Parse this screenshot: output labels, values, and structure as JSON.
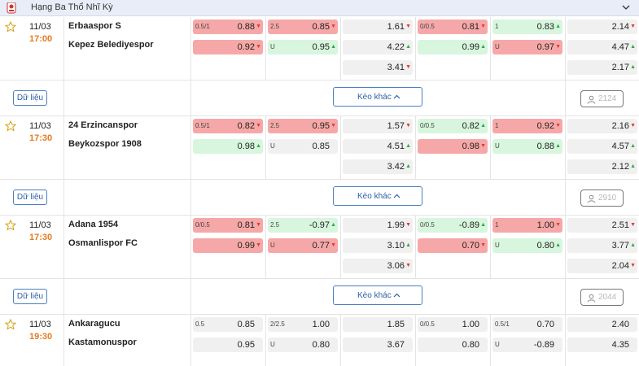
{
  "league": {
    "title": "Hạng Ba Thổ Nhĩ Kỳ"
  },
  "colors": {
    "red_cell": "#f6a8a8",
    "green_cell": "#d7f6dd",
    "neutral_cell": "#f0f0f0",
    "time": "#e47b1f",
    "accent": "#4a7fc1"
  },
  "sub_labels": {
    "data_button": "Dữ liệu",
    "more_button": "Kèo khác"
  },
  "matches": [
    {
      "date": "11/03",
      "time": "17:00",
      "home": "Erbaaspor S",
      "away": "Kepez Belediyespor",
      "viewers": "2124",
      "cells": [
        [
          {
            "l": "0.5/1",
            "v": "0.88",
            "c": "red",
            "a": "down"
          },
          {
            "l": "2.5",
            "v": "0.85",
            "c": "red",
            "a": "down"
          },
          {
            "l": "",
            "v": "1.61",
            "c": "neutral",
            "a": "down"
          },
          {
            "l": "0/0.5",
            "v": "0.81",
            "c": "red",
            "a": "down"
          },
          {
            "l": "1",
            "v": "0.83",
            "c": "green",
            "a": "up"
          },
          {
            "l": "",
            "v": "2.14",
            "c": "neutral",
            "a": "down"
          }
        ],
        [
          {
            "l": "",
            "v": "0.92",
            "c": "red",
            "a": "down"
          },
          {
            "l": "U",
            "v": "0.95",
            "c": "green",
            "a": "up"
          },
          {
            "l": "",
            "v": "4.22",
            "c": "neutral",
            "a": "up"
          },
          {
            "l": "",
            "v": "0.99",
            "c": "green",
            "a": "up"
          },
          {
            "l": "U",
            "v": "0.97",
            "c": "red",
            "a": "down"
          },
          {
            "l": "",
            "v": "4.47",
            "c": "neutral",
            "a": "up"
          }
        ],
        [
          null,
          null,
          {
            "l": "",
            "v": "3.41",
            "c": "neutral",
            "a": "down"
          },
          null,
          null,
          {
            "l": "",
            "v": "2.17",
            "c": "neutral",
            "a": "up"
          }
        ]
      ]
    },
    {
      "date": "11/03",
      "time": "17:30",
      "home": "24 Erzincanspor",
      "away": "Beykozspor 1908",
      "viewers": "2910",
      "cells": [
        [
          {
            "l": "0.5/1",
            "v": "0.82",
            "c": "red",
            "a": "down"
          },
          {
            "l": "2.5",
            "v": "0.95",
            "c": "red",
            "a": "down"
          },
          {
            "l": "",
            "v": "1.57",
            "c": "neutral",
            "a": "down"
          },
          {
            "l": "0/0.5",
            "v": "0.82",
            "c": "green",
            "a": "up"
          },
          {
            "l": "1",
            "v": "0.92",
            "c": "red",
            "a": "down"
          },
          {
            "l": "",
            "v": "2.16",
            "c": "neutral",
            "a": "down"
          }
        ],
        [
          {
            "l": "",
            "v": "0.98",
            "c": "green",
            "a": "up"
          },
          {
            "l": "U",
            "v": "0.85",
            "c": "neutral",
            "a": ""
          },
          {
            "l": "",
            "v": "4.51",
            "c": "neutral",
            "a": "up"
          },
          {
            "l": "",
            "v": "0.98",
            "c": "red",
            "a": "down"
          },
          {
            "l": "U",
            "v": "0.88",
            "c": "green",
            "a": "up"
          },
          {
            "l": "",
            "v": "4.57",
            "c": "neutral",
            "a": "up"
          }
        ],
        [
          null,
          null,
          {
            "l": "",
            "v": "3.42",
            "c": "neutral",
            "a": "up"
          },
          null,
          null,
          {
            "l": "",
            "v": "2.12",
            "c": "neutral",
            "a": "up"
          }
        ]
      ]
    },
    {
      "date": "11/03",
      "time": "17:30",
      "home": "Adana 1954",
      "away": "Osmanlispor FC",
      "viewers": "2044",
      "cells": [
        [
          {
            "l": "0/0.5",
            "v": "0.81",
            "c": "red",
            "a": "down"
          },
          {
            "l": "2.5",
            "v": "-0.97",
            "c": "green",
            "a": "up"
          },
          {
            "l": "",
            "v": "1.99",
            "c": "neutral",
            "a": "down"
          },
          {
            "l": "0/0.5",
            "v": "-0.89",
            "c": "green",
            "a": "up"
          },
          {
            "l": "1",
            "v": "1.00",
            "c": "red",
            "a": "down"
          },
          {
            "l": "",
            "v": "2.51",
            "c": "neutral",
            "a": "down"
          }
        ],
        [
          {
            "l": "",
            "v": "0.99",
            "c": "red",
            "a": "down"
          },
          {
            "l": "U",
            "v": "0.77",
            "c": "red",
            "a": "down"
          },
          {
            "l": "",
            "v": "3.10",
            "c": "neutral",
            "a": "up"
          },
          {
            "l": "",
            "v": "0.70",
            "c": "red",
            "a": "down"
          },
          {
            "l": "U",
            "v": "0.80",
            "c": "green",
            "a": "up"
          },
          {
            "l": "",
            "v": "3.77",
            "c": "neutral",
            "a": "up"
          }
        ],
        [
          null,
          null,
          {
            "l": "",
            "v": "3.06",
            "c": "neutral",
            "a": "down"
          },
          null,
          null,
          {
            "l": "",
            "v": "2.04",
            "c": "neutral",
            "a": "down"
          }
        ]
      ]
    },
    {
      "date": "11/03",
      "time": "19:30",
      "home": "Ankaragucu",
      "away": "Kastamonuspor",
      "viewers": "",
      "cells": [
        [
          {
            "l": "0.5",
            "v": "0.85",
            "c": "neutral",
            "a": ""
          },
          {
            "l": "2/2.5",
            "v": "1.00",
            "c": "neutral",
            "a": ""
          },
          {
            "l": "",
            "v": "1.85",
            "c": "neutral",
            "a": ""
          },
          {
            "l": "0/0.5",
            "v": "1.00",
            "c": "neutral",
            "a": ""
          },
          {
            "l": "0.5/1",
            "v": "0.70",
            "c": "neutral",
            "a": ""
          },
          {
            "l": "",
            "v": "2.40",
            "c": "neutral",
            "a": ""
          }
        ],
        [
          {
            "l": "",
            "v": "0.95",
            "c": "neutral",
            "a": ""
          },
          {
            "l": "U",
            "v": "0.80",
            "c": "neutral",
            "a": ""
          },
          {
            "l": "",
            "v": "3.67",
            "c": "neutral",
            "a": ""
          },
          {
            "l": "",
            "v": "0.80",
            "c": "neutral",
            "a": ""
          },
          {
            "l": "U",
            "v": "-0.89",
            "c": "neutral",
            "a": ""
          },
          {
            "l": "",
            "v": "4.35",
            "c": "neutral",
            "a": ""
          }
        ],
        [
          null,
          null,
          null,
          null,
          null,
          null
        ]
      ]
    }
  ]
}
